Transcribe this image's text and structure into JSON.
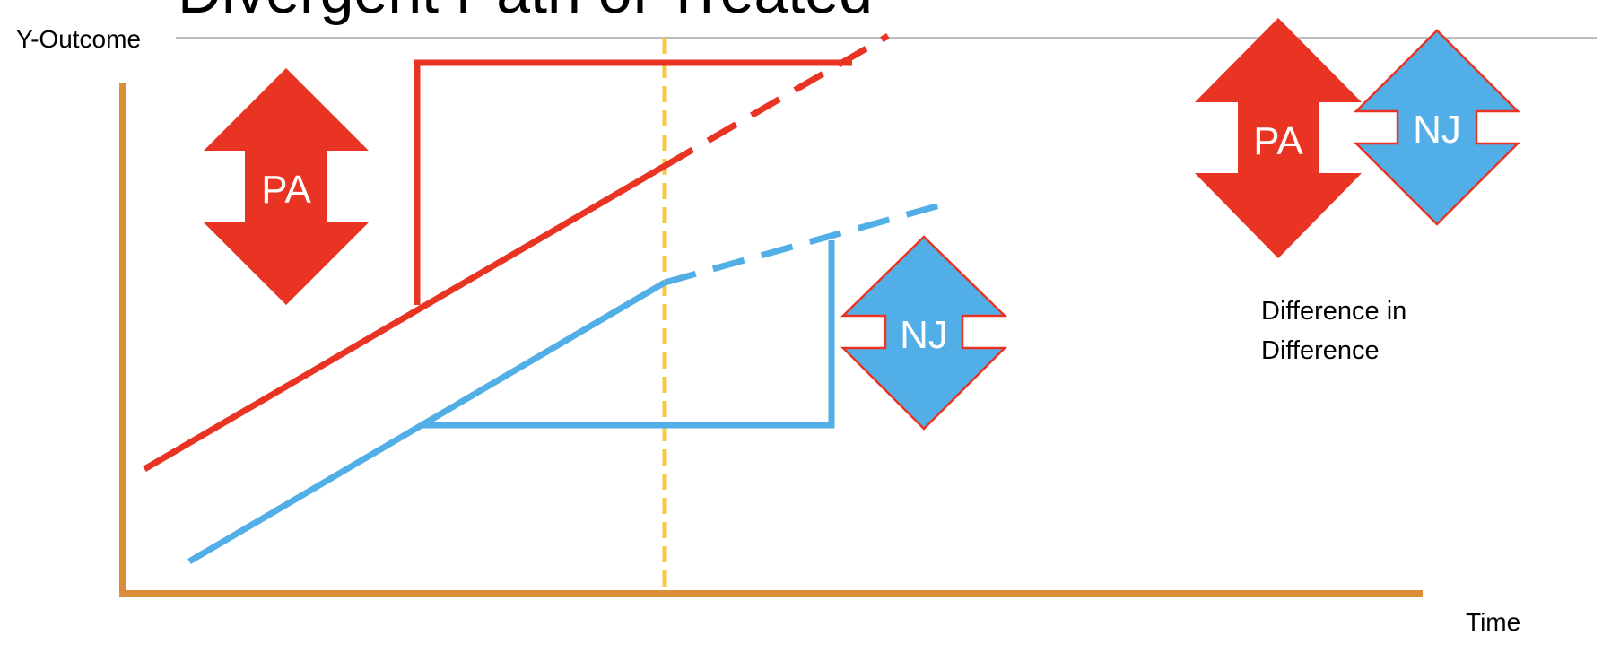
{
  "slide": {
    "title": "Divergent Path of Treated"
  },
  "axes": {
    "y_label": "Y-Outcome",
    "x_label": "Time"
  },
  "arrows": {
    "pa_label": "PA",
    "nj_label": "NJ",
    "legend_pa_label": "PA",
    "legend_nj_label": "NJ"
  },
  "legend": {
    "caption_line1": "Difference in",
    "caption_line2": "Difference"
  },
  "colors": {
    "pa_red": "#E93423",
    "nj_blue": "#52AEE6",
    "axis_orange": "#DA8E3A",
    "treatment_yellow": "#F6C940",
    "rule_gray": "#BDBDBD",
    "text_dark": "#000000",
    "label_white": "#FFFFFF"
  }
}
